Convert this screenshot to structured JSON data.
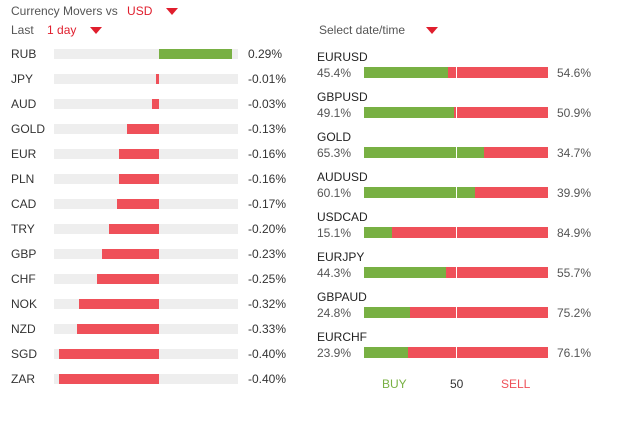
{
  "header": {
    "title": "Currency Movers vs",
    "currency": "USD",
    "period_label": "Last",
    "period_value": "1 day",
    "date_label": "Select date/time"
  },
  "colors": {
    "gain": "#78b043",
    "loss": "#ef5059",
    "track": "#eeeeee",
    "accent": "#e01e2d"
  },
  "movers": [
    {
      "code": "RUB",
      "value": "0.29%",
      "change": 0.29
    },
    {
      "code": "JPY",
      "value": "-0.01%",
      "change": -0.01
    },
    {
      "code": "AUD",
      "value": "-0.03%",
      "change": -0.03
    },
    {
      "code": "GOLD",
      "value": "-0.13%",
      "change": -0.13
    },
    {
      "code": "EUR",
      "value": "-0.16%",
      "change": -0.16
    },
    {
      "code": "PLN",
      "value": "-0.16%",
      "change": -0.16
    },
    {
      "code": "CAD",
      "value": "-0.17%",
      "change": -0.17
    },
    {
      "code": "TRY",
      "value": "-0.20%",
      "change": -0.2
    },
    {
      "code": "GBP",
      "value": "-0.23%",
      "change": -0.23
    },
    {
      "code": "CHF",
      "value": "-0.25%",
      "change": -0.25
    },
    {
      "code": "NOK",
      "value": "-0.32%",
      "change": -0.32
    },
    {
      "code": "NZD",
      "value": "-0.33%",
      "change": -0.33
    },
    {
      "code": "SGD",
      "value": "-0.40%",
      "change": -0.4
    },
    {
      "code": "ZAR",
      "value": "-0.40%",
      "change": -0.4
    }
  ],
  "pairs": [
    {
      "name": "EURUSD",
      "buy": "45.4%",
      "sell": "54.6%",
      "buy_pct": 45.4
    },
    {
      "name": "GBPUSD",
      "buy": "49.1%",
      "sell": "50.9%",
      "buy_pct": 49.1
    },
    {
      "name": "GOLD",
      "buy": "65.3%",
      "sell": "34.7%",
      "buy_pct": 65.3
    },
    {
      "name": "AUDUSD",
      "buy": "60.1%",
      "sell": "39.9%",
      "buy_pct": 60.1
    },
    {
      "name": "USDCAD",
      "buy": "15.1%",
      "sell": "84.9%",
      "buy_pct": 15.1
    },
    {
      "name": "EURJPY",
      "buy": "44.3%",
      "sell": "55.7%",
      "buy_pct": 44.3
    },
    {
      "name": "GBPAUD",
      "buy": "24.8%",
      "sell": "75.2%",
      "buy_pct": 24.8
    },
    {
      "name": "EURCHF",
      "buy": "23.9%",
      "sell": "76.1%",
      "buy_pct": 23.9
    }
  ],
  "legend": {
    "buy": "BUY",
    "mid": "50",
    "sell": "SELL"
  }
}
